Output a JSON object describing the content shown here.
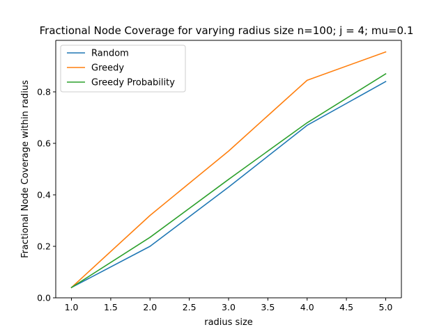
{
  "chart_data": {
    "type": "line",
    "title": "Fractional Node Coverage for varying radius size n=100; j = 4; mu=0.1",
    "xlabel": "radius size",
    "ylabel": "Fractional Node Coverage within radius",
    "x": [
      1.0,
      2.0,
      3.0,
      4.0,
      5.0
    ],
    "xlim": [
      0.8,
      5.2
    ],
    "ylim": [
      -0.0,
      1.0
    ],
    "xticks": [
      1.0,
      1.5,
      2.0,
      2.5,
      3.0,
      3.5,
      4.0,
      4.5,
      5.0
    ],
    "xtick_labels": [
      "1.0",
      "1.5",
      "2.0",
      "2.5",
      "3.0",
      "3.5",
      "4.0",
      "4.5",
      "5.0"
    ],
    "yticks": [
      0.0,
      0.2,
      0.4,
      0.6,
      0.8
    ],
    "ytick_labels": [
      "0.0",
      "0.2",
      "0.4",
      "0.6",
      "0.8"
    ],
    "grid": false,
    "legend_position": "top-left",
    "series": [
      {
        "name": "Random",
        "color": "#1f77b4",
        "values": [
          0.04,
          0.2,
          0.43,
          0.67,
          0.84
        ]
      },
      {
        "name": "Greedy",
        "color": "#ff7f0e",
        "values": [
          0.04,
          0.32,
          0.57,
          0.845,
          0.955
        ]
      },
      {
        "name": "Greedy Probability",
        "color": "#2ca02c",
        "values": [
          0.04,
          0.235,
          0.46,
          0.68,
          0.87
        ]
      }
    ]
  }
}
